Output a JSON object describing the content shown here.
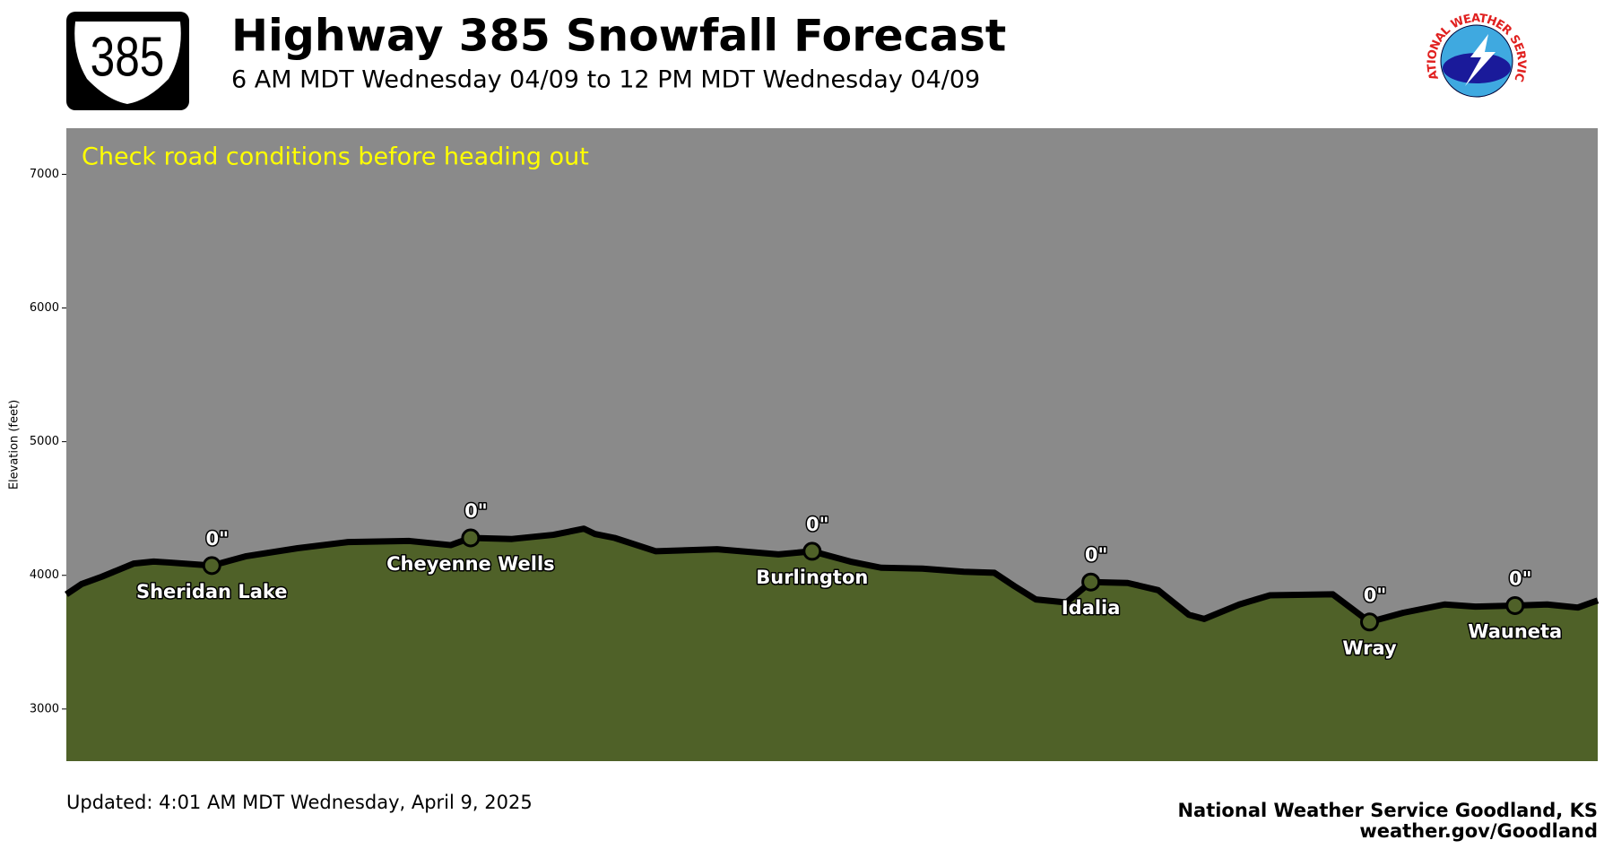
{
  "chart_data": {
    "type": "area",
    "route_shield": "385",
    "title": "Highway 385 Snowfall Forecast",
    "subtitle": "6 AM MDT Wednesday 04/09 to 12 PM MDT Wednesday 04/09",
    "logo_text": "NATIONAL WEATHER SERVICE",
    "annotation": "Check road conditions before heading out",
    "y_label": "Elevation (feet)",
    "updated": "Updated: 4:01 AM MDT Wednesday, April 9, 2025",
    "credit": "National Weather Service Goodland, KS",
    "website": "weather.gov/Goodland",
    "x": [
      0,
      1,
      2.3,
      4.4,
      5.7,
      6.7,
      9.5,
      11.7,
      15.1,
      18.4,
      22.4,
      25.1,
      26.4,
      29.1,
      31.8,
      33.8,
      34.5,
      35.8,
      38.5,
      42.5,
      46.5,
      48.7,
      51.2,
      53.2,
      55.9,
      58.6,
      60.6,
      61.9,
      63.3,
      65.3,
      66.9,
      69.3,
      71.3,
      73.3,
      74.3,
      76.6,
      78.6,
      82.7,
      85.1,
      87.3,
      90,
      92,
      94.6,
      96.7,
      98.7,
      100
    ],
    "values": [
      3858,
      3935,
      3989,
      4088,
      4103,
      4096,
      4073,
      4142,
      4203,
      4249,
      4257,
      4226,
      4280,
      4272,
      4303,
      4349,
      4310,
      4280,
      4180,
      4195,
      4157,
      4180,
      4103,
      4057,
      4050,
      4027,
      4019,
      3920,
      3820,
      3797,
      3950,
      3943,
      3889,
      3705,
      3674,
      3782,
      3851,
      3858,
      3651,
      3720,
      3782,
      3766,
      3774,
      3782,
      3759,
      3812
    ],
    "color": "#4f6128",
    "line_color": "#000000",
    "background": "#8a8a8a",
    "annotation_color": "#ffff00",
    "xlim": [
      0,
      100
    ],
    "ylim": [
      2610,
      7345
    ],
    "yticks": [
      3000,
      4000,
      5000,
      6000,
      7000
    ],
    "towns": {
      "names": [
        "Sheridan Lake",
        "Cheyenne Wells",
        "Burlington",
        "Idalia",
        "Wray",
        "Wauneta"
      ],
      "x": [
        9.5,
        26.4,
        48.7,
        66.9,
        85.1,
        94.6
      ],
      "elevations": [
        4073,
        4280,
        4180,
        3950,
        3651,
        3774
      ],
      "values": [
        0,
        0,
        0,
        0,
        0,
        0
      ],
      "value_labels": [
        "0\"",
        "0\"",
        "0\"",
        "0\"",
        "0\"",
        "0\""
      ]
    }
  }
}
